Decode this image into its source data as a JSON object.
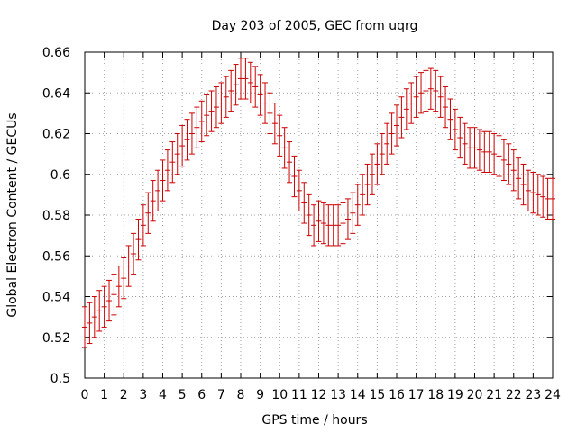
{
  "chart_data": {
    "type": "scatter",
    "title": "Day 203 of 2005, GEC from uqrg",
    "xlabel": "GPS time / hours",
    "ylabel": "Global Electron Content / GECUs",
    "xlim": [
      0,
      24
    ],
    "ylim": [
      0.5,
      0.66
    ],
    "x_ticks": [
      "0",
      "1",
      "2",
      "3",
      "4",
      "5",
      "6",
      "7",
      "8",
      "9",
      "10",
      "11",
      "12",
      "13",
      "14",
      "15",
      "16",
      "17",
      "18",
      "19",
      "20",
      "21",
      "22",
      "23",
      "24"
    ],
    "y_ticks": [
      "0.5",
      "0.52",
      "0.54",
      "0.56",
      "0.58",
      "0.6",
      "0.62",
      "0.64",
      "0.66"
    ],
    "grid": true,
    "error_bar_color": "#cc0000",
    "series": [
      {
        "x": [
          0,
          0.25,
          0.5,
          0.75,
          1,
          1.25,
          1.5,
          1.75,
          2,
          2.25,
          2.5,
          2.75,
          3,
          3.25,
          3.5,
          3.75,
          4,
          4.25,
          4.5,
          4.75,
          5,
          5.25,
          5.5,
          5.75,
          6,
          6.25,
          6.5,
          6.75,
          7,
          7.25,
          7.5,
          7.75,
          8,
          8.25,
          8.5,
          8.75,
          9,
          9.25,
          9.5,
          9.75,
          10,
          10.25,
          10.5,
          10.75,
          11,
          11.25,
          11.5,
          11.75,
          12,
          12.25,
          12.5,
          12.75,
          13,
          13.25,
          13.5,
          13.75,
          14,
          14.25,
          14.5,
          14.75,
          15,
          15.25,
          15.5,
          15.75,
          16,
          16.25,
          16.5,
          16.75,
          17,
          17.25,
          17.5,
          17.75,
          18,
          18.25,
          18.5,
          18.75,
          19,
          19.25,
          19.5,
          19.75,
          20,
          20.25,
          20.5,
          20.75,
          21,
          21.25,
          21.5,
          21.75,
          22,
          22.25,
          22.5,
          22.75,
          23,
          23.25,
          23.5,
          23.75,
          24
        ],
        "y": [
          0.525,
          0.527,
          0.53,
          0.533,
          0.535,
          0.538,
          0.541,
          0.545,
          0.549,
          0.555,
          0.561,
          0.568,
          0.575,
          0.581,
          0.587,
          0.592,
          0.597,
          0.602,
          0.606,
          0.61,
          0.614,
          0.617,
          0.62,
          0.623,
          0.626,
          0.629,
          0.631,
          0.633,
          0.635,
          0.638,
          0.641,
          0.644,
          0.647,
          0.647,
          0.645,
          0.643,
          0.639,
          0.635,
          0.63,
          0.625,
          0.619,
          0.613,
          0.606,
          0.599,
          0.592,
          0.586,
          0.58,
          0.575,
          0.577,
          0.576,
          0.575,
          0.575,
          0.575,
          0.576,
          0.578,
          0.581,
          0.585,
          0.59,
          0.595,
          0.6,
          0.605,
          0.61,
          0.615,
          0.62,
          0.624,
          0.628,
          0.632,
          0.635,
          0.638,
          0.64,
          0.641,
          0.642,
          0.641,
          0.638,
          0.633,
          0.627,
          0.622,
          0.618,
          0.615,
          0.613,
          0.613,
          0.612,
          0.611,
          0.611,
          0.61,
          0.609,
          0.607,
          0.605,
          0.602,
          0.598,
          0.595,
          0.592,
          0.591,
          0.59,
          0.589,
          0.588,
          0.588
        ],
        "err": 0.01
      }
    ]
  }
}
